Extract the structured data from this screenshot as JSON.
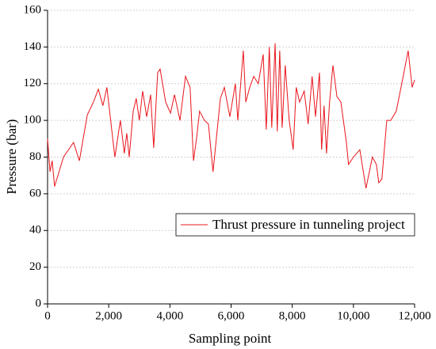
{
  "chart_data": {
    "type": "line",
    "xlabel": "Sampling point",
    "ylabel": "Pressure (bar)",
    "x": [
      0,
      80,
      150,
      230,
      520,
      850,
      1040,
      1300,
      1500,
      1660,
      1810,
      1940,
      2200,
      2380,
      2510,
      2590,
      2670,
      2800,
      2900,
      3000,
      3110,
      3240,
      3370,
      3470,
      3600,
      3680,
      3860,
      4020,
      4150,
      4330,
      4510,
      4660,
      4770,
      4870,
      4970,
      5130,
      5260,
      5410,
      5650,
      5780,
      5960,
      6140,
      6220,
      6400,
      6480,
      6610,
      6740,
      6890,
      7050,
      7150,
      7250,
      7330,
      7440,
      7510,
      7590,
      7670,
      7770,
      7900,
      8030,
      8130,
      8240,
      8390,
      8520,
      8650,
      8760,
      8890,
      8960,
      9040,
      9120,
      9220,
      9330,
      9460,
      9590,
      9770,
      9840,
      10000,
      10210,
      10410,
      10620,
      10750,
      10830,
      10930,
      11090,
      11220,
      11400,
      11580,
      11790,
      11920,
      12000
    ],
    "series": [
      {
        "name": "Thrust pressure in tunneling project",
        "color": "#e8141c",
        "values": [
          90,
          72,
          78,
          64,
          80,
          88,
          78,
          103,
          110,
          117,
          108,
          118,
          80,
          100,
          82,
          93,
          80,
          105,
          112,
          100,
          116,
          102,
          114,
          85,
          126,
          128,
          110,
          104,
          114,
          100,
          124,
          118,
          78,
          90,
          105,
          100,
          98,
          72,
          112,
          118,
          102,
          120,
          100,
          138,
          110,
          118,
          124,
          120,
          136,
          95,
          140,
          96,
          142,
          94,
          138,
          96,
          130,
          100,
          84,
          118,
          110,
          116,
          98,
          124,
          102,
          126,
          84,
          108,
          82,
          110,
          130,
          113,
          110,
          88,
          76,
          80,
          84,
          63,
          80,
          76,
          66,
          68,
          100,
          100,
          105,
          120,
          138,
          118,
          122
        ]
      }
    ],
    "xlim": [
      0,
      12000
    ],
    "xticks": [
      0,
      {
        "value": 2000,
        "label": "2,000"
      },
      {
        "value": 4000,
        "label": "4,000"
      },
      {
        "value": 6000,
        "label": "6,000"
      },
      {
        "value": 8000,
        "label": "8,000"
      },
      {
        "value": 10000,
        "label": "10,000"
      },
      {
        "value": 12000,
        "label": "12,000"
      }
    ],
    "ylim": [
      0,
      160
    ],
    "yticks": [
      0,
      20,
      40,
      60,
      80,
      100,
      120,
      140,
      160
    ],
    "grid": true,
    "legend": "right"
  }
}
